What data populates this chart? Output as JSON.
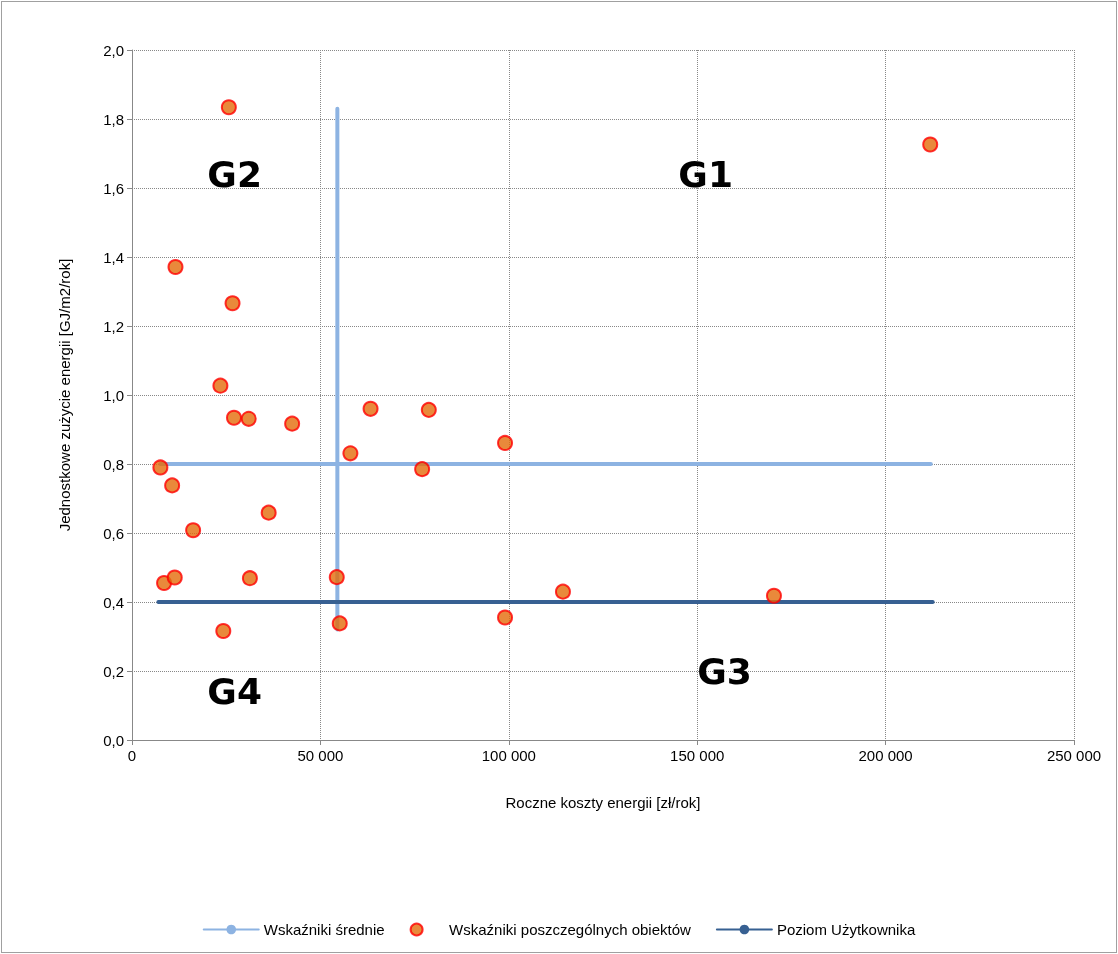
{
  "chart_data": {
    "type": "scatter",
    "xlabel": "Roczne koszty energii [zł/rok]",
    "ylabel": "Jednostkowe zużycie energii [GJ/m2/rok]",
    "xlim": [
      0,
      250000
    ],
    "ylim": [
      0,
      2
    ],
    "xticks": [
      {
        "value": 0,
        "label": "0"
      },
      {
        "value": 50000,
        "label": "50 000"
      },
      {
        "value": 100000,
        "label": "100 000"
      },
      {
        "value": 150000,
        "label": "150 000"
      },
      {
        "value": 200000,
        "label": "200 000"
      },
      {
        "value": 250000,
        "label": "250 000"
      }
    ],
    "yticks": [
      {
        "value": 0,
        "label": "0,0"
      },
      {
        "value": 0.2,
        "label": "0,2"
      },
      {
        "value": 0.4,
        "label": "0,4"
      },
      {
        "value": 0.6,
        "label": "0,6"
      },
      {
        "value": 0.8,
        "label": "0,8"
      },
      {
        "value": 1,
        "label": "1,0"
      },
      {
        "value": 1.2,
        "label": "1,2"
      },
      {
        "value": 1.4,
        "label": "1,4"
      },
      {
        "value": 1.6,
        "label": "1,6"
      },
      {
        "value": 1.8,
        "label": "1,8"
      },
      {
        "value": 2,
        "label": "2,0"
      }
    ],
    "grid": true,
    "legend": "bottom",
    "series": [
      {
        "name": "Wskaźniki średnie",
        "type": "line",
        "color": "#8db3e2",
        "marker": "none",
        "x": [
          54500,
          54500,
          null,
          7500,
          212000
        ],
        "values": [
          1.83,
          0.32,
          null,
          0.8,
          0.8
        ]
      },
      {
        "name": "Wskaźniki poszczególnych obiektów",
        "color": "#e46c0a",
        "marker": "circle",
        "x": [
          25700,
          11540,
          26680,
          23460,
          27070,
          30980,
          42500,
          63310,
          78770,
          99000,
          57960,
          7530,
          77000,
          10650,
          36270,
          16220,
          8510,
          11340,
          31290,
          54340,
          24230,
          55130,
          99000,
          114370,
          170370,
          211840
        ],
        "values": [
          1.834,
          1.371,
          1.266,
          1.027,
          0.934,
          0.931,
          0.917,
          0.96,
          0.957,
          0.861,
          0.831,
          0.79,
          0.785,
          0.738,
          0.659,
          0.608,
          0.455,
          0.471,
          0.469,
          0.472,
          0.316,
          0.338,
          0.355,
          0.43,
          0.418,
          1.726
        ]
      },
      {
        "name": "Poziom Użytkownika",
        "type": "line",
        "color": "#376092",
        "marker": "none",
        "x": [
          7000,
          212500
        ],
        "values": [
          0.4,
          0.4
        ]
      }
    ],
    "annotations": [
      "G1",
      "G2",
      "G3",
      "G4"
    ]
  }
}
